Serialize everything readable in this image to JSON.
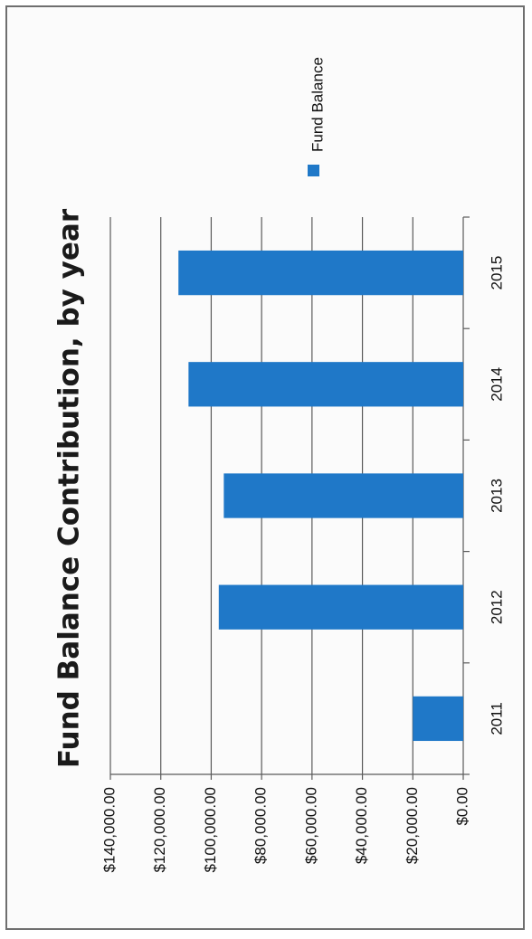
{
  "chart_data": {
    "type": "bar",
    "orientation": "vertical (figure rotated 90° counter-clockwise on page)",
    "title": "Fund Balance Contribution, by year",
    "xlabel": "",
    "ylabel": "",
    "categories": [
      "2011",
      "2012",
      "2013",
      "2014",
      "2015"
    ],
    "series": [
      {
        "name": "Fund Balance",
        "values": [
          20000,
          97000,
          95000,
          109000,
          113000
        ],
        "color": "#1f78c8"
      }
    ],
    "ylim": [
      0,
      140000
    ],
    "y_ticks": [
      "$0.00",
      "$20,000.00",
      "$40,000.00",
      "$60,000.00",
      "$80,000.00",
      "$100,000.00",
      "$120,000.00",
      "$140,000.00"
    ],
    "grid": true,
    "legend_position": "right"
  }
}
